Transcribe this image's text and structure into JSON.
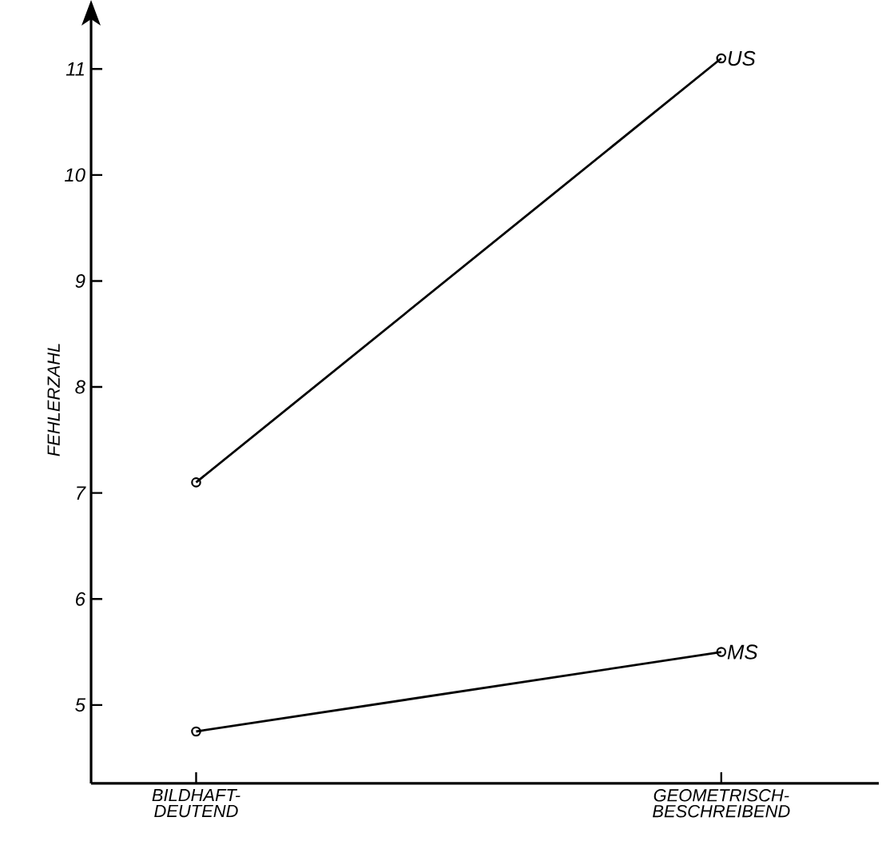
{
  "chart_data": {
    "type": "line",
    "ylabel": "FEHLERZAHL",
    "categories": [
      "BILDHAFT-DEUTEND",
      "GEOMETRISCH-BESCHREIBEND"
    ],
    "series": [
      {
        "name": "US",
        "color": "#000000",
        "values": [
          7.1,
          11.1
        ]
      },
      {
        "name": "MS",
        "color": "#000000",
        "values": [
          4.75,
          5.5
        ]
      }
    ],
    "ylim": [
      4.26,
      11.5
    ],
    "yticks": [
      5,
      6,
      7,
      8,
      9,
      10,
      11
    ],
    "marker": "circle",
    "line_style": "solid",
    "grid": false
  }
}
